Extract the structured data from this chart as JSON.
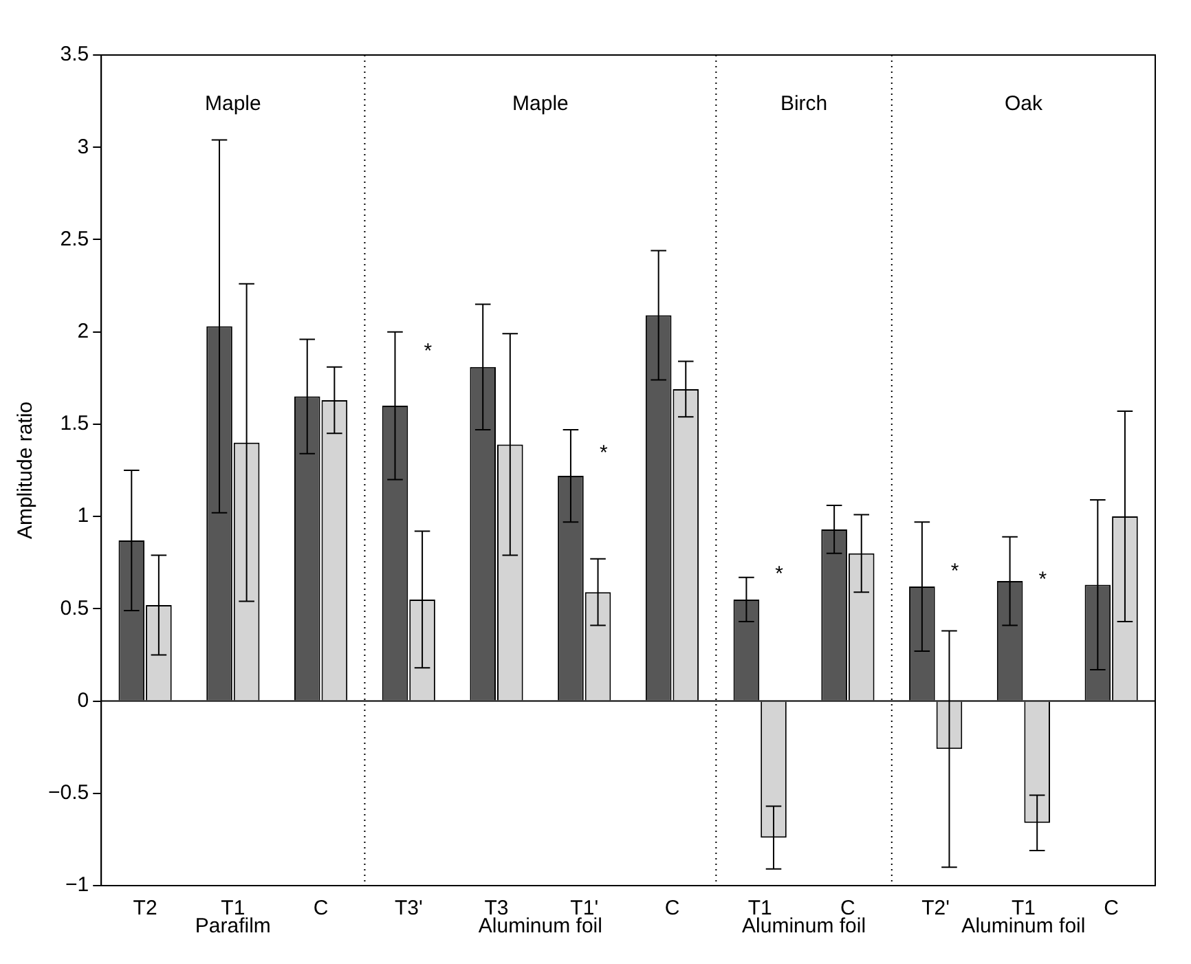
{
  "chart_data": {
    "type": "bar",
    "ylabel": "Amplitude ratio",
    "categories": [
      "T2",
      "T1",
      "C",
      "T3'",
      "T3",
      "T1'",
      "C",
      "T1",
      "C",
      "T2'",
      "T1",
      "C"
    ],
    "series": [
      {
        "color": "#575757",
        "values": [
          0.87,
          2.03,
          1.65,
          1.6,
          1.81,
          1.22,
          2.09,
          0.55,
          0.93,
          0.62,
          0.65,
          0.63
        ],
        "errors": [
          0.38,
          1.01,
          0.31,
          0.4,
          0.34,
          0.25,
          0.35,
          0.12,
          0.13,
          0.35,
          0.24,
          0.46
        ]
      },
      {
        "color": "#d4d4d4",
        "values": [
          0.52,
          1.4,
          1.63,
          0.55,
          1.39,
          0.59,
          1.69,
          -0.74,
          0.8,
          -0.26,
          -0.66,
          1.0
        ],
        "errors": [
          0.27,
          0.86,
          0.18,
          0.37,
          0.6,
          0.18,
          0.15,
          0.17,
          0.21,
          0.64,
          0.15,
          0.57
        ]
      }
    ],
    "ylim": [
      -1,
      3.5
    ],
    "yticks": [
      {
        "value": -1,
        "label": "−1"
      },
      {
        "value": -0.5,
        "label": "−0.5"
      },
      0,
      0.5,
      1,
      1.5,
      2,
      2.5,
      3,
      3.5
    ],
    "ref_lines": [
      {
        "axis": "y",
        "value": 0,
        "color": "#000000",
        "line_style": "solid"
      }
    ],
    "annotations": [
      "Maple",
      "Maple",
      "Birch",
      "Oak",
      "Parafilm",
      "Aluminum foil",
      "Aluminum foil",
      "Aluminum foil",
      "*",
      "*",
      "*",
      "*",
      "*"
    ]
  }
}
